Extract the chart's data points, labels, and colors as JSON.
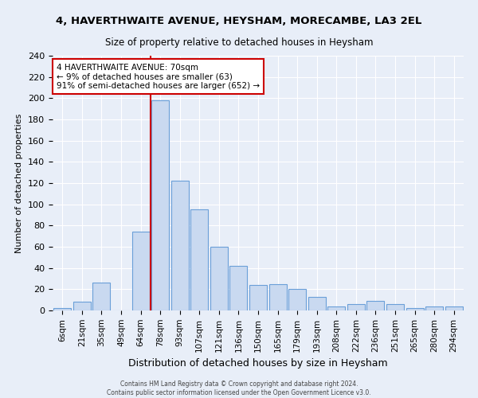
{
  "title": "4, HAVERTHWAITE AVENUE, HEYSHAM, MORECAMBE, LA3 2EL",
  "subtitle": "Size of property relative to detached houses in Heysham",
  "xlabel": "Distribution of detached houses by size in Heysham",
  "ylabel": "Number of detached properties",
  "bar_labels": [
    "6sqm",
    "21sqm",
    "35sqm",
    "49sqm",
    "64sqm",
    "78sqm",
    "93sqm",
    "107sqm",
    "121sqm",
    "136sqm",
    "150sqm",
    "165sqm",
    "179sqm",
    "193sqm",
    "208sqm",
    "222sqm",
    "236sqm",
    "251sqm",
    "265sqm",
    "280sqm",
    "294sqm"
  ],
  "bar_heights": [
    2,
    8,
    26,
    0,
    74,
    198,
    122,
    95,
    60,
    42,
    24,
    25,
    20,
    13,
    4,
    6,
    9,
    6,
    2,
    4,
    4
  ],
  "bar_color": "#c9d9f0",
  "bar_edge_color": "#6a9fd8",
  "bg_color": "#e8eef8",
  "grid_color": "#ffffff",
  "vline_color": "#cc0000",
  "annotation_title": "4 HAVERTHWAITE AVENUE: 70sqm",
  "annotation_line1": "← 9% of detached houses are smaller (63)",
  "annotation_line2": "91% of semi-detached houses are larger (652) →",
  "annotation_box_color": "#ffffff",
  "annotation_box_edge": "#cc0000",
  "ylim": [
    0,
    240
  ],
  "yticks": [
    0,
    20,
    40,
    60,
    80,
    100,
    120,
    140,
    160,
    180,
    200,
    220,
    240
  ],
  "footer1": "Contains HM Land Registry data © Crown copyright and database right 2024.",
  "footer2": "Contains public sector information licensed under the Open Government Licence v3.0."
}
